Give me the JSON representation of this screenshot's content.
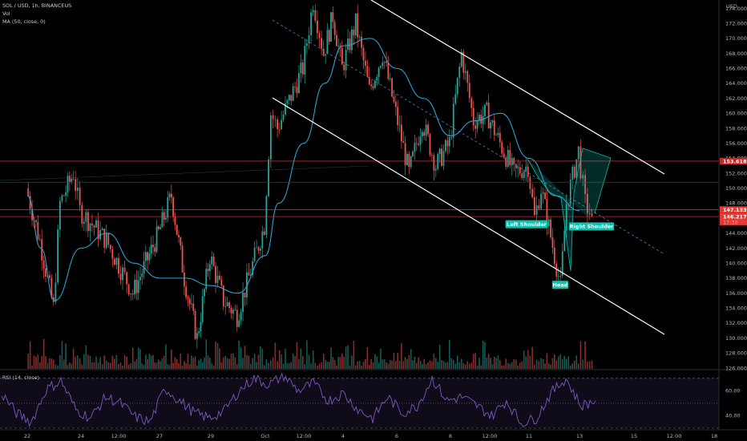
{
  "header": {
    "symbol": "SOL / USD, 1h, BINANCEUS",
    "volume_label": "Vol",
    "ma_label": "MA (50, close, 0)",
    "rsi_label": "RSI (14, close)",
    "currency": "USD"
  },
  "colors": {
    "background": "#000000",
    "up": "#26a69a",
    "down": "#ef5350",
    "ma": "#2aa3d4",
    "rsi": "#7e57c2",
    "channel": "#ffffff",
    "pattern": "#0ec2b1",
    "resistance": "#e53935"
  },
  "chart_data": [
    {
      "type": "candlestick",
      "symbol": "SOL / USD",
      "interval": "1h",
      "exchange": "BINANCEUS",
      "ylim": [
        126,
        175
      ],
      "y_ticks": [
        "174.0000",
        "172.0000",
        "170.0000",
        "168.0000",
        "166.0000",
        "164.0000",
        "162.0000",
        "160.0000",
        "158.0000",
        "156.0000",
        "154.0000",
        "152.0000",
        "150.0000",
        "148.0000",
        "146.0000",
        "144.0000",
        "142.0000",
        "140.0000",
        "138.0000",
        "136.0000",
        "134.0000",
        "132.0000",
        "130.0000",
        "128.0000",
        "126.0000"
      ],
      "x_ticks": [
        "22",
        "24",
        "12:00",
        "27",
        "29",
        "Oct",
        "12:00",
        "4",
        "6",
        "8",
        "12:00",
        "11",
        "13",
        "15",
        "12:00",
        "18"
      ],
      "close_path": [
        [
          "22",
          150
        ],
        [
          "22 12:00",
          143
        ],
        [
          "23",
          134
        ],
        [
          "23 06:00",
          148
        ],
        [
          "23 18:00",
          152
        ],
        [
          "24",
          147
        ],
        [
          "25",
          143
        ],
        [
          "26",
          136
        ],
        [
          "26 12:00",
          140
        ],
        [
          "27",
          144
        ],
        [
          "27 12:00",
          149
        ],
        [
          "28",
          138
        ],
        [
          "28 12:00",
          130
        ],
        [
          "29",
          141
        ],
        [
          "29 12:00",
          135
        ],
        [
          "30",
          133
        ],
        [
          "30 12:00",
          139
        ],
        [
          "Oct",
          145
        ],
        [
          "Oct 06:00",
          160
        ],
        [
          "Oct 12:00",
          158
        ],
        [
          "2",
          166
        ],
        [
          "2 12:00",
          175
        ],
        [
          "3",
          168
        ],
        [
          "3 12:00",
          173
        ],
        [
          "4",
          166
        ],
        [
          "4 12:00",
          172
        ],
        [
          "5",
          163
        ],
        [
          "5 12:00",
          168
        ],
        [
          "6",
          160
        ],
        [
          "6 12:00",
          152
        ],
        [
          "7",
          159
        ],
        [
          "7 12:00",
          153
        ],
        [
          "8",
          156
        ],
        [
          "8 12:00",
          168
        ],
        [
          "9",
          159
        ],
        [
          "9 12:00",
          160
        ],
        [
          "10",
          156
        ],
        [
          "10 12:00",
          152
        ],
        [
          "11",
          153
        ],
        [
          "11 06:00",
          146
        ],
        [
          "11 12:00",
          150
        ],
        [
          "12",
          141
        ],
        [
          "12 06:00",
          137
        ],
        [
          "12 12:00",
          148
        ],
        [
          "13",
          155
        ],
        [
          "13 06:00",
          148
        ],
        [
          "13 12:00",
          146.2
        ]
      ],
      "indicators": [
        {
          "name": "MA (50, close, 0)",
          "points": [
            [
              "22",
              149
            ],
            [
              "22 12:00",
              142
            ],
            [
              "23",
              135
            ],
            [
              "24",
              142
            ],
            [
              "25",
              144
            ],
            [
              "26",
              140
            ],
            [
              "27",
              138
            ],
            [
              "28",
              138
            ],
            [
              "29",
              137
            ],
            [
              "30",
              136
            ],
            [
              "Oct",
              141
            ],
            [
              "Oct 12:00",
              148
            ],
            [
              "2",
              156
            ],
            [
              "3",
              164
            ],
            [
              "4",
              169
            ],
            [
              "5",
              170
            ],
            [
              "6",
              166
            ],
            [
              "7",
              162
            ],
            [
              "8",
              157
            ],
            [
              "9",
              159
            ],
            [
              "10",
              160
            ],
            [
              "11",
              154
            ],
            [
              "12",
              149
            ],
            [
              "13",
              147
            ]
          ]
        }
      ],
      "levels": [
        {
          "label": "153.6182",
          "value": 153.6182,
          "color": "#e53935"
        },
        {
          "label": "147.1331",
          "value": 147.1331,
          "color": "#e53935"
        },
        {
          "label": "146.2177",
          "sub_label": "17:30",
          "value": 146.2177,
          "color": "#e53935"
        }
      ],
      "annotations": [
        {
          "text": "Left Shoulder",
          "x": "11",
          "y": 145.2
        },
        {
          "text": "Head",
          "x": "12",
          "y": 137.1
        },
        {
          "text": "Right Shoulder",
          "x": "13",
          "y": 144.9
        }
      ]
    },
    {
      "type": "line",
      "title": "RSI (14, close)",
      "ylim": [
        30,
        75
      ],
      "y_ticks": [
        "60.00",
        "40.00"
      ],
      "bands": [
        70,
        50,
        30
      ],
      "values": [
        58,
        42,
        35,
        61,
        68,
        45,
        38,
        55,
        50,
        39,
        35,
        62,
        52,
        42,
        38,
        44,
        60,
        70,
        65,
        72,
        60,
        66,
        52,
        58,
        45,
        38,
        55,
        42,
        48,
        70,
        52,
        55,
        48,
        40,
        52,
        34,
        38,
        58,
        70,
        48,
        52
      ]
    }
  ]
}
